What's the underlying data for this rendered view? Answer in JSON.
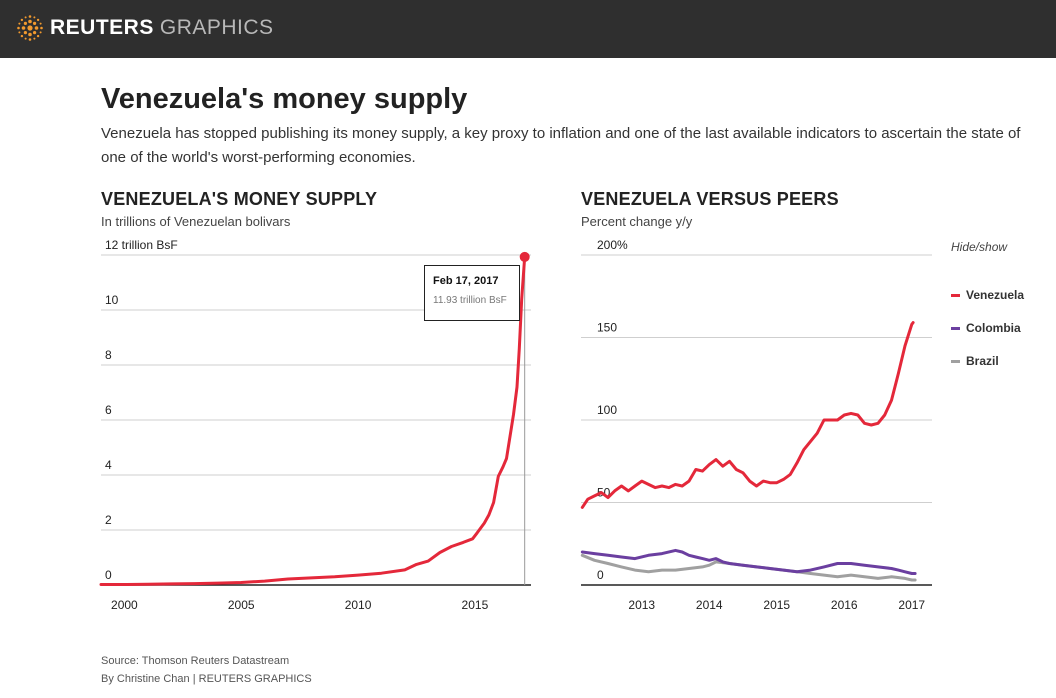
{
  "header": {
    "brand_bold": "REUTERS",
    "brand_light": "GRAPHICS"
  },
  "title": "Venezuela's money supply",
  "dek": "Venezuela has stopped publishing its money supply, a key proxy to inflation and one of the last available indicators to ascertain the state of one of the world's worst-performing economies.",
  "colors": {
    "venezuela": "#e4283a",
    "colombia": "#6b3fa0",
    "brazil": "#a0a0a0",
    "logo": "#f29a2e"
  },
  "chart_data": [
    {
      "type": "line",
      "title": "VENEZUELA'S MONEY SUPPLY",
      "subtitle": "In trillions of Venezuelan bolivars",
      "xlabel": "",
      "ylabel": "",
      "xlim": [
        1999,
        2017.4
      ],
      "ylim": [
        0,
        12
      ],
      "yticks": [
        {
          "value": 12,
          "label": "12 trillion BsF"
        },
        {
          "value": 10,
          "label": "10"
        },
        {
          "value": 8,
          "label": "8"
        },
        {
          "value": 6,
          "label": "6"
        },
        {
          "value": 4,
          "label": "4"
        },
        {
          "value": 2,
          "label": "2"
        },
        {
          "value": 0,
          "label": "0"
        }
      ],
      "xticks": [
        {
          "value": 2000,
          "label": "2000"
        },
        {
          "value": 2005,
          "label": "2005"
        },
        {
          "value": 2010,
          "label": "2010"
        },
        {
          "value": 2015,
          "label": "2015"
        }
      ],
      "series": [
        {
          "name": "Venezuela",
          "x": [
            1999,
            2000,
            2001,
            2002,
            2003,
            2004,
            2005,
            2006,
            2007,
            2008,
            2009,
            2010,
            2011,
            2012,
            2012.5,
            2013,
            2013.5,
            2014,
            2014.5,
            2014.9,
            2015.1,
            2015.4,
            2015.6,
            2015.8,
            2016,
            2016.2,
            2016.35,
            2016.5,
            2016.65,
            2016.8,
            2016.9,
            2017,
            2017.13
          ],
          "values": [
            0.02,
            0.02,
            0.03,
            0.04,
            0.05,
            0.07,
            0.09,
            0.14,
            0.22,
            0.26,
            0.3,
            0.36,
            0.43,
            0.55,
            0.75,
            0.87,
            1.18,
            1.4,
            1.55,
            1.68,
            1.9,
            2.25,
            2.55,
            3.0,
            3.95,
            4.3,
            4.6,
            5.4,
            6.2,
            7.2,
            8.6,
            10.4,
            11.93
          ]
        }
      ],
      "tooltip": {
        "date": "Feb 17, 2017",
        "value": "11.93 trillion BsF",
        "x": 2017.13,
        "y": 11.93
      }
    },
    {
      "type": "line",
      "title": "VENEZUELA VERSUS PEERS",
      "subtitle": "Percent change y/y",
      "xlabel": "",
      "ylabel": "",
      "xlim": [
        2012.1,
        2017.3
      ],
      "ylim": [
        0,
        200
      ],
      "yticks": [
        {
          "value": 200,
          "label": "200%"
        },
        {
          "value": 150,
          "label": "150"
        },
        {
          "value": 100,
          "label": "100"
        },
        {
          "value": 50,
          "label": "50"
        },
        {
          "value": 0,
          "label": "0"
        }
      ],
      "xticks": [
        {
          "value": 2013,
          "label": "2013"
        },
        {
          "value": 2014,
          "label": "2014"
        },
        {
          "value": 2015,
          "label": "2015"
        },
        {
          "value": 2016,
          "label": "2016"
        },
        {
          "value": 2017,
          "label": "2017"
        }
      ],
      "legend_title": "Hide/show",
      "series": [
        {
          "name": "Venezuela",
          "color_key": "venezuela",
          "x": [
            2012.12,
            2012.2,
            2012.3,
            2012.4,
            2012.5,
            2012.6,
            2012.7,
            2012.8,
            2012.9,
            2013,
            2013.1,
            2013.2,
            2013.3,
            2013.4,
            2013.5,
            2013.6,
            2013.7,
            2013.8,
            2013.9,
            2014,
            2014.1,
            2014.2,
            2014.3,
            2014.4,
            2014.5,
            2014.6,
            2014.7,
            2014.8,
            2014.9,
            2015,
            2015.1,
            2015.2,
            2015.3,
            2015.4,
            2015.5,
            2015.6,
            2015.7,
            2015.8,
            2015.9,
            2016,
            2016.1,
            2016.2,
            2016.3,
            2016.4,
            2016.5,
            2016.6,
            2016.7,
            2016.8,
            2016.9,
            2017,
            2017.02
          ],
          "values": [
            47,
            52,
            54,
            56,
            53,
            57,
            60,
            57,
            60,
            63,
            61,
            59,
            60,
            59,
            61,
            60,
            63,
            70,
            69,
            73,
            76,
            72,
            75,
            70,
            68,
            63,
            60,
            63,
            62,
            62,
            64,
            67,
            74,
            82,
            87,
            92,
            100,
            100,
            100,
            103,
            104,
            103,
            98,
            97,
            98,
            103,
            112,
            128,
            145,
            158,
            159
          ]
        },
        {
          "name": "Colombia",
          "color_key": "colombia",
          "x": [
            2012.12,
            2012.3,
            2012.5,
            2012.7,
            2012.9,
            2013.1,
            2013.3,
            2013.5,
            2013.6,
            2013.7,
            2013.8,
            2013.9,
            2014,
            2014.1,
            2014.2,
            2014.3,
            2014.5,
            2014.7,
            2014.9,
            2015.1,
            2015.3,
            2015.5,
            2015.7,
            2015.9,
            2016.1,
            2016.3,
            2016.5,
            2016.7,
            2016.8,
            2016.9,
            2017,
            2017.05
          ],
          "values": [
            20,
            19,
            18,
            17,
            16,
            18,
            19,
            21,
            20,
            18,
            17,
            16,
            15,
            16,
            14,
            13,
            12,
            11,
            10,
            9,
            8,
            9,
            11,
            13,
            13,
            12,
            11,
            10,
            9,
            8,
            7,
            7
          ]
        },
        {
          "name": "Brazil",
          "color_key": "brazil",
          "x": [
            2012.12,
            2012.3,
            2012.5,
            2012.7,
            2012.9,
            2013.1,
            2013.3,
            2013.5,
            2013.7,
            2013.9,
            2014,
            2014.1,
            2014.3,
            2014.5,
            2014.7,
            2014.9,
            2015.1,
            2015.3,
            2015.5,
            2015.7,
            2015.9,
            2016.1,
            2016.3,
            2016.5,
            2016.7,
            2016.9,
            2017,
            2017.05
          ],
          "values": [
            18,
            15,
            13,
            11,
            9,
            8,
            9,
            9,
            10,
            11,
            12,
            14,
            13,
            12,
            11,
            10,
            9,
            8,
            7,
            6,
            5,
            6,
            5,
            4,
            5,
            4,
            3,
            3
          ]
        }
      ]
    }
  ],
  "footer": {
    "source": "Source: Thomson Reuters Datastream",
    "byline": "By Christine Chan | REUTERS GRAPHICS"
  }
}
